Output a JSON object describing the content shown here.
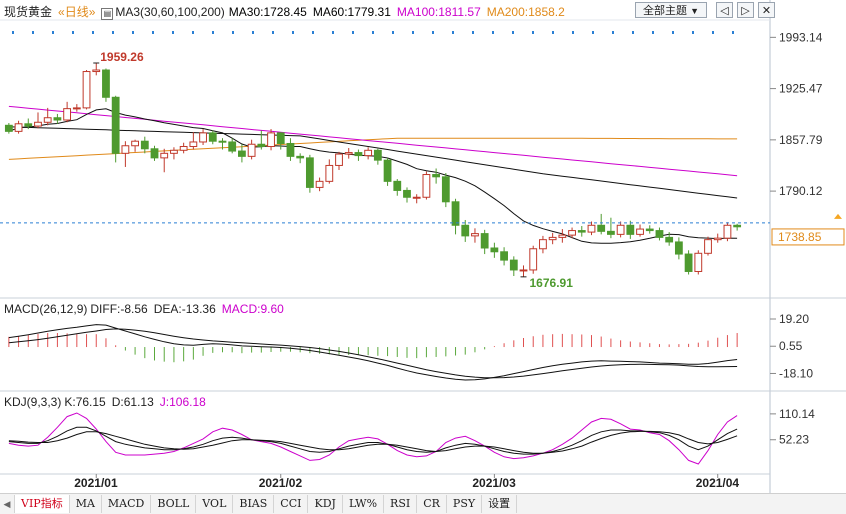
{
  "header": {
    "instrument": "现货黄金",
    "period": "«日线»",
    "ma_label": "MA3(30,60,100,200)",
    "ma30": "MA30:1728.45",
    "ma60": "MA60:1779.31",
    "ma100": "MA100:1811.57",
    "ma200": "MA200:1858.2",
    "topic_select": "全部主题",
    "colors": {
      "ma30": "#000000",
      "ma60": "#000000",
      "ma100": "#cc00cc",
      "ma200": "#e08a1a"
    }
  },
  "toolbar_icons": [
    "prev-arrow-icon",
    "next-arrow-icon",
    "close-icon"
  ],
  "macd_header": {
    "label": "MACD(26,12,9)",
    "diff": "DIFF:-8.56",
    "dea": "DEA:-13.36",
    "macd": "MACD:9.60"
  },
  "kdj_header": {
    "label": "KDJ(9,3,3)",
    "k": "K:76.15",
    "d": "D:61.13",
    "j": "J:106.18"
  },
  "tabs": [
    "VIP指标",
    "MA",
    "MACD",
    "BOLL",
    "VOL",
    "BIAS",
    "CCI",
    "KDJ",
    "LW%",
    "RSI",
    "CR",
    "PSY",
    "设置"
  ],
  "chart_data": {
    "type": "candlestick",
    "price_axis_ticks": [
      "1993.14",
      "1925.47",
      "1857.79",
      "1790.12"
    ],
    "price_ylim": [
      1656.9,
      2013.4
    ],
    "current_price": "1738.85",
    "annotations": {
      "high": "1959.26",
      "low": "1676.91"
    },
    "x_labels": [
      "2021/01",
      "2021/02",
      "2021/03",
      "2021/04"
    ],
    "candles": [
      [
        1877,
        1869,
        1880,
        1866
      ],
      [
        1869,
        1879,
        1883,
        1866
      ],
      [
        1879,
        1876,
        1886,
        1872
      ],
      [
        1876,
        1881,
        1894,
        1873
      ],
      [
        1881,
        1887,
        1900,
        1877
      ],
      [
        1887,
        1884,
        1892,
        1879
      ],
      [
        1884,
        1899,
        1908,
        1881
      ],
      [
        1899,
        1900,
        1905,
        1895
      ],
      [
        1900,
        1948,
        1950,
        1898
      ],
      [
        1948,
        1950,
        1959.26,
        1943
      ],
      [
        1950,
        1914,
        1952,
        1908
      ],
      [
        1914,
        1840,
        1916,
        1828
      ],
      [
        1840,
        1850,
        1856,
        1822
      ],
      [
        1850,
        1856,
        1858,
        1842
      ],
      [
        1856,
        1846,
        1862,
        1840
      ],
      [
        1846,
        1834,
        1850,
        1830
      ],
      [
        1834,
        1840,
        1846,
        1815
      ],
      [
        1840,
        1844,
        1848,
        1832
      ],
      [
        1844,
        1849,
        1854,
        1840
      ],
      [
        1849,
        1855,
        1868,
        1845
      ],
      [
        1855,
        1867,
        1872,
        1851
      ],
      [
        1867,
        1856,
        1870,
        1852
      ],
      [
        1856,
        1855,
        1860,
        1845
      ],
      [
        1855,
        1843,
        1860,
        1840
      ],
      [
        1843,
        1836,
        1852,
        1828
      ],
      [
        1836,
        1852,
        1858,
        1832
      ],
      [
        1852,
        1849,
        1870,
        1845
      ],
      [
        1849,
        1867,
        1872,
        1844
      ],
      [
        1867,
        1853,
        1868,
        1845
      ],
      [
        1853,
        1836,
        1860,
        1830
      ],
      [
        1836,
        1834,
        1840,
        1827
      ],
      [
        1834,
        1795,
        1838,
        1788
      ],
      [
        1795,
        1803,
        1808,
        1790
      ],
      [
        1803,
        1824,
        1832,
        1800
      ],
      [
        1824,
        1839,
        1842,
        1818
      ],
      [
        1839,
        1841,
        1847,
        1833
      ],
      [
        1841,
        1837,
        1845,
        1830
      ],
      [
        1837,
        1844,
        1848,
        1832
      ],
      [
        1844,
        1831,
        1846,
        1825
      ],
      [
        1831,
        1803,
        1834,
        1797
      ],
      [
        1803,
        1791,
        1806,
        1784
      ],
      [
        1791,
        1782,
        1795,
        1775
      ],
      [
        1782,
        1782,
        1786,
        1774
      ],
      [
        1782,
        1812,
        1816,
        1779
      ],
      [
        1812,
        1809,
        1820,
        1800
      ],
      [
        1809,
        1776,
        1814,
        1769
      ],
      [
        1776,
        1745,
        1780,
        1733
      ],
      [
        1745,
        1731,
        1752,
        1723
      ],
      [
        1731,
        1734,
        1741,
        1722
      ],
      [
        1734,
        1715,
        1739,
        1707
      ],
      [
        1715,
        1710,
        1722,
        1702
      ],
      [
        1710,
        1699,
        1716,
        1692
      ],
      [
        1699,
        1686,
        1704,
        1678
      ],
      [
        1686,
        1686,
        1692,
        1676.91
      ],
      [
        1686,
        1714,
        1718,
        1681
      ],
      [
        1714,
        1726,
        1731,
        1708
      ],
      [
        1726,
        1729,
        1735,
        1720
      ],
      [
        1729,
        1732,
        1740,
        1722
      ],
      [
        1732,
        1738,
        1742,
        1728
      ],
      [
        1738,
        1736,
        1744,
        1730
      ],
      [
        1736,
        1745,
        1750,
        1732
      ],
      [
        1745,
        1737,
        1760,
        1733
      ],
      [
        1737,
        1733,
        1755,
        1728
      ],
      [
        1733,
        1745,
        1750,
        1729
      ],
      [
        1745,
        1733,
        1751,
        1727
      ],
      [
        1733,
        1740,
        1746,
        1730
      ],
      [
        1740,
        1738,
        1745,
        1734
      ],
      [
        1738,
        1729,
        1742,
        1725
      ],
      [
        1729,
        1723,
        1736,
        1718
      ],
      [
        1723,
        1707,
        1729,
        1700
      ],
      [
        1707,
        1684,
        1712,
        1680
      ],
      [
        1684,
        1708,
        1712,
        1680
      ],
      [
        1708,
        1726,
        1730,
        1705
      ],
      [
        1726,
        1728,
        1734,
        1722
      ],
      [
        1728,
        1745,
        1749,
        1724
      ],
      [
        1745,
        1743,
        1747,
        1738
      ]
    ],
    "macd_axis_ticks": [
      "19.20",
      "0.55",
      "-18.10"
    ],
    "macd_ylim": [
      -26,
      24
    ],
    "diff": [
      6.5,
      7.4,
      8.4,
      9.6,
      10.8,
      11.8,
      12.8,
      13.5,
      14.5,
      15.4,
      15,
      13,
      11,
      9,
      7,
      5.2,
      3.6,
      2.2,
      1.5,
      1.2,
      1.8,
      2.2,
      2,
      1.5,
      0.8,
      0.6,
      0.2,
      0,
      -0.3,
      -0.8,
      -1.5,
      -2.4,
      -3.4,
      -4.5,
      -5.6,
      -6.8,
      -8,
      -9.4,
      -11,
      -12.6,
      -14.4,
      -16.2,
      -17.8,
      -19,
      -20.2,
      -21.2,
      -22,
      -22.6,
      -22.4,
      -21.8,
      -20.8,
      -19.6,
      -18.2,
      -16.8,
      -15.4,
      -14,
      -12.8,
      -11.8,
      -11,
      -10.2,
      -9.6,
      -9.4,
      -9.6,
      -9.8,
      -10,
      -10.2,
      -10.6,
      -11,
      -11.2,
      -11.4,
      -11.8,
      -11.8,
      -11.3,
      -10.3,
      -9.3,
      -8.56
    ],
    "dea": [
      3,
      3.6,
      4.3,
      5.1,
      6,
      7,
      8.1,
      9.1,
      10.1,
      11,
      12,
      12.4,
      12.2,
      11.6,
      10.8,
      9.8,
      8.6,
      7.4,
      6.4,
      5.5,
      4.8,
      4.2,
      3.8,
      3.3,
      2.9,
      2.5,
      2.1,
      1.7,
      1.3,
      0.8,
      0.3,
      -0.3,
      -1.1,
      -2,
      -3,
      -4.1,
      -5.3,
      -6.6,
      -8,
      -9.5,
      -11,
      -12.5,
      -14,
      -15.5,
      -16.8,
      -18,
      -19.1,
      -20,
      -20.6,
      -21,
      -21.1,
      -20.9,
      -20.5,
      -19.9,
      -19.1,
      -18.2,
      -17.2,
      -16.3,
      -15.4,
      -14.5,
      -13.7,
      -13,
      -12.5,
      -12.1,
      -11.9,
      -11.8,
      -11.9,
      -12,
      -12.1,
      -12.4,
      -12.9,
      -13.3,
      -13.5,
      -13.5,
      -13.4,
      -13.36
    ],
    "macd_hist": [
      7,
      7.6,
      8.2,
      9,
      9.6,
      9.6,
      9.4,
      8.8,
      8.8,
      8.8,
      6,
      1.2,
      -2.4,
      -5.2,
      -7.6,
      -9.2,
      -10,
      -10.4,
      -9.8,
      -8.6,
      -6,
      -4,
      -3.6,
      -3.6,
      -4.2,
      -3.8,
      -3.8,
      -3.4,
      -3.2,
      -3.2,
      -3.6,
      -4.2,
      -4.6,
      -5,
      -5.2,
      -5.4,
      -5.4,
      -5.6,
      -6,
      -6.2,
      -6.8,
      -7.4,
      -7.6,
      -7,
      -6.8,
      -6.4,
      -5.8,
      -5.2,
      -3.6,
      -1.6,
      0.6,
      2.6,
      4.6,
      6.2,
      7.4,
      8.4,
      8.8,
      9,
      8.8,
      8.6,
      8.2,
      7.2,
      5.8,
      4.6,
      3.8,
      3.2,
      2.6,
      2,
      1.8,
      2,
      2.2,
      3,
      4.4,
      6.4,
      8.2,
      9.6
    ],
    "kdj_axis_ticks": [
      "110.14",
      "52.23"
    ],
    "kdj_ylim": [
      -20,
      130
    ],
    "k": [
      48,
      46,
      44,
      44,
      50,
      60,
      72,
      80,
      80,
      72,
      60,
      48,
      42,
      38,
      34,
      32,
      30,
      30,
      32,
      36,
      42,
      50,
      56,
      58,
      56,
      52,
      50,
      48,
      44,
      38,
      32,
      26,
      24,
      26,
      32,
      38,
      42,
      46,
      46,
      42,
      36,
      30,
      26,
      24,
      26,
      34,
      40,
      44,
      42,
      38,
      32,
      26,
      22,
      20,
      20,
      22,
      26,
      32,
      40,
      50,
      62,
      70,
      74,
      74,
      72,
      72,
      70,
      68,
      62,
      52,
      38,
      30,
      38,
      52,
      66,
      76.15
    ],
    "d": [
      50,
      49,
      47,
      46,
      46,
      50,
      56,
      64,
      70,
      70,
      66,
      60,
      54,
      48,
      42,
      38,
      34,
      32,
      31,
      32,
      36,
      40,
      45,
      50,
      52,
      52,
      51,
      50,
      48,
      44,
      40,
      36,
      32,
      30,
      30,
      32,
      36,
      40,
      42,
      42,
      40,
      36,
      32,
      28,
      26,
      28,
      32,
      36,
      38,
      38,
      36,
      32,
      28,
      24,
      22,
      22,
      24,
      27,
      32,
      38,
      47,
      55,
      62,
      67,
      70,
      71,
      71,
      70,
      68,
      63,
      54,
      46,
      43,
      46,
      53,
      61.13
    ],
    "j": [
      44,
      40,
      38,
      40,
      58,
      80,
      104,
      112,
      100,
      76,
      48,
      24,
      18,
      18,
      18,
      20,
      22,
      26,
      34,
      44,
      54,
      70,
      78,
      74,
      64,
      52,
      48,
      44,
      36,
      26,
      16,
      6,
      8,
      18,
      36,
      50,
      54,
      58,
      54,
      42,
      28,
      18,
      14,
      16,
      26,
      46,
      56,
      60,
      50,
      38,
      24,
      14,
      10,
      12,
      16,
      22,
      30,
      42,
      56,
      74,
      92,
      100,
      98,
      88,
      76,
      74,
      68,
      64,
      50,
      30,
      6,
      -2,
      28,
      64,
      92,
      106.18
    ]
  }
}
